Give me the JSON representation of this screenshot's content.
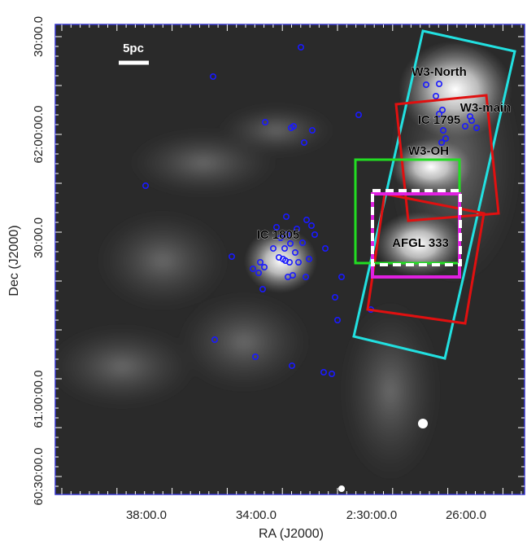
{
  "chart_data": {
    "type": "image",
    "x_label": "RA (J2000)",
    "y_label": "Dec (J2000)",
    "xtick_labels": [
      "38:00.0",
      "34:00.0",
      "2:30:00.0",
      "26:00.0"
    ],
    "ytick_labels": [
      "30:00.0",
      "62:00:00.0",
      "30:00.0",
      "61:00:00.0",
      "60:30:00.0"
    ],
    "scale_bar": "5pc",
    "annotations": [
      "W3-North",
      "W3-main",
      "IC 1795",
      "W3-OH",
      "IC 1805",
      "AFGL 333"
    ]
  }
}
